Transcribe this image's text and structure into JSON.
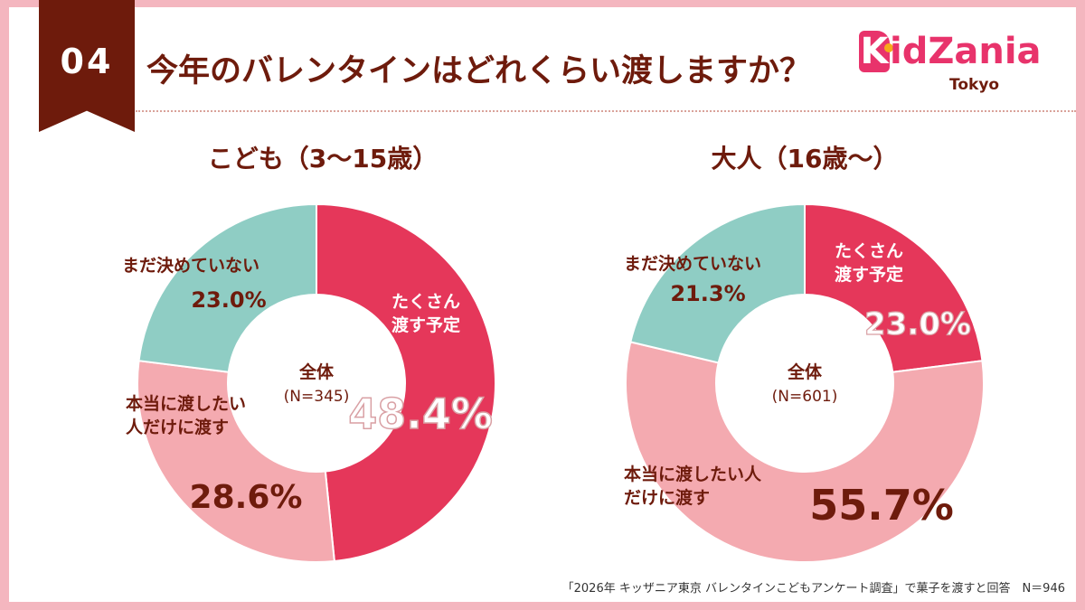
{
  "header": {
    "number": "04",
    "title": "今年のバレンタインはどれくらい渡しますか？"
  },
  "logo": {
    "name": "KidZania",
    "k_letter": "K",
    "rest": "idZania",
    "sub": "Tokyo"
  },
  "colors": {
    "dark_brown": "#6e1b0c",
    "red": "#e5375a",
    "pink": "#f4aab0",
    "teal": "#8fcdc4",
    "frame": "#f4b6bf"
  },
  "chart_data": [
    {
      "type": "donut",
      "title": "こども（3～15歳）",
      "center_label": "全体",
      "center_n": "(N=345)",
      "slices": [
        {
          "label": "たくさん渡す予定",
          "label_lines": [
            "たくさん",
            "渡す予定"
          ],
          "value": 48.4,
          "value_label": "48.4%",
          "color": "#e5375a"
        },
        {
          "label": "本当に渡したい人だけに渡す",
          "label_lines": [
            "本当に渡したい",
            "人だけに渡す"
          ],
          "value": 28.6,
          "value_label": "28.6%",
          "color": "#f4aab0"
        },
        {
          "label": "まだ決めていない",
          "label_lines": [
            "まだ決めていない"
          ],
          "value": 23.0,
          "value_label": "23.0%",
          "color": "#8fcdc4"
        }
      ]
    },
    {
      "type": "donut",
      "title": "大人（16歳～）",
      "center_label": "全体",
      "center_n": "(N=601)",
      "slices": [
        {
          "label": "たくさん渡す予定",
          "label_lines": [
            "たくさん",
            "渡す予定"
          ],
          "value": 23.0,
          "value_label": "23.0%",
          "color": "#e5375a"
        },
        {
          "label": "本当に渡したい人だけに渡す",
          "label_lines": [
            "本当に渡したい人",
            "だけに渡す"
          ],
          "value": 55.7,
          "value_label": "55.7%",
          "color": "#f4aab0"
        },
        {
          "label": "まだ決めていない",
          "label_lines": [
            "まだ決めていない"
          ],
          "value": 21.3,
          "value_label": "21.3%",
          "color": "#8fcdc4"
        }
      ]
    }
  ],
  "footnote": "「2026年 キッザニア東京 バレンタインこどもアンケート調査」で菓子を渡すと回答　N＝946"
}
